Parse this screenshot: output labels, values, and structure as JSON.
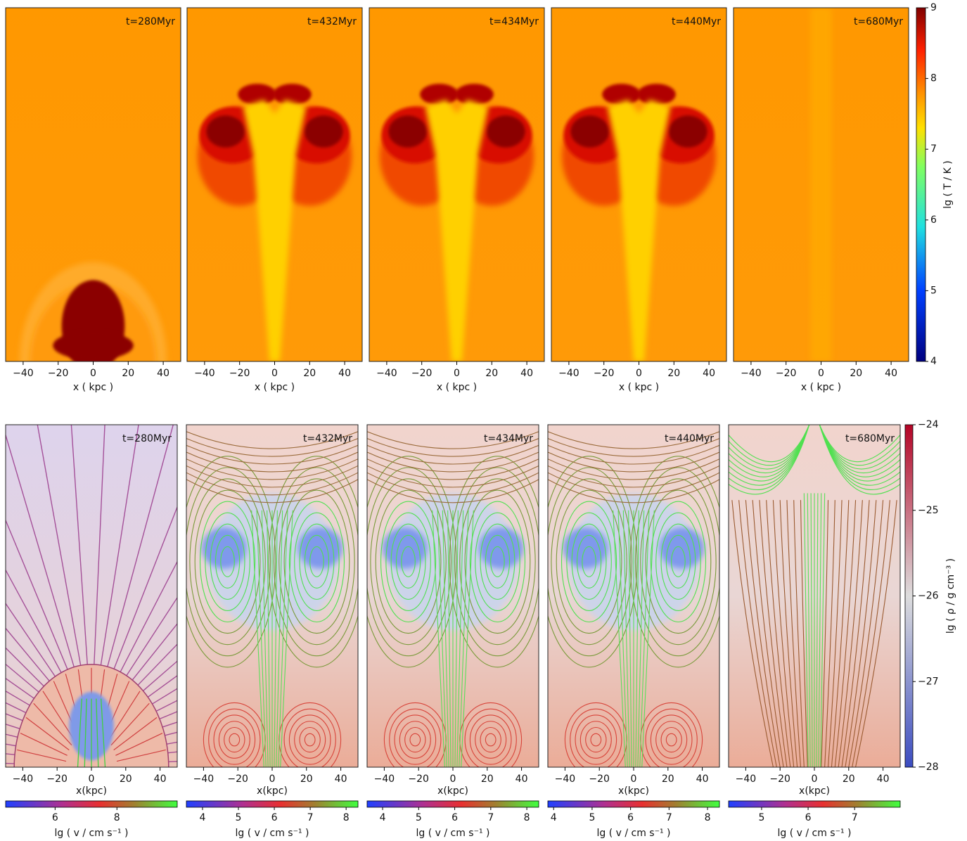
{
  "chart_data": [
    {
      "type": "heatmap",
      "title": "t=280Myr",
      "xlabel": "x ( kpc )",
      "xlim": [
        -50,
        50
      ],
      "xticks": [
        {
          "value": -40,
          "label": "−40"
        },
        {
          "value": -20,
          "label": "−20"
        },
        0,
        20,
        40
      ]
    },
    {
      "type": "heatmap",
      "title": "t=432Myr",
      "xlabel": "x ( kpc )",
      "xlim": [
        -50,
        50
      ],
      "xticks": [
        {
          "value": -40,
          "label": "−40"
        },
        {
          "value": -20,
          "label": "−20"
        },
        0,
        20,
        40
      ]
    },
    {
      "type": "heatmap",
      "title": "t=434Myr",
      "xlabel": "x ( kpc )",
      "xlim": [
        -50,
        50
      ],
      "xticks": [
        {
          "value": -40,
          "label": "−40"
        },
        {
          "value": -20,
          "label": "−20"
        },
        0,
        20,
        40
      ]
    },
    {
      "type": "heatmap",
      "title": "t=440Myr",
      "xlabel": "x ( kpc )",
      "xlim": [
        -50,
        50
      ],
      "xticks": [
        {
          "value": -40,
          "label": "−40"
        },
        {
          "value": -20,
          "label": "−20"
        },
        0,
        20,
        40
      ]
    },
    {
      "type": "heatmap",
      "title": "t=680Myr",
      "xlabel": "x ( kpc )",
      "xlim": [
        -50,
        50
      ],
      "xticks": [
        {
          "value": -40,
          "label": "−40"
        },
        {
          "value": -20,
          "label": "−20"
        },
        0,
        20,
        40
      ],
      "colorbar": {
        "label": "lg ( T / K )",
        "lim": [
          4,
          9
        ],
        "ticks": [
          4,
          5,
          6,
          7,
          8,
          9
        ]
      }
    },
    {
      "type": "streamplot",
      "title": "t=280Myr",
      "xlabel": "x(kpc)",
      "xlim": [
        -50,
        50
      ],
      "xticks": [
        {
          "value": -40,
          "label": "−40"
        },
        {
          "value": -20,
          "label": "−20"
        },
        0,
        20,
        40
      ],
      "velocity_colorbar": {
        "label": "lg ( v / cm  s⁻¹ )",
        "lim": [
          4.4,
          9.95
        ],
        "ticks": [
          6,
          8
        ]
      }
    },
    {
      "type": "streamplot",
      "title": "t=432Myr",
      "xlabel": "x(kpc)",
      "xlim": [
        -50,
        50
      ],
      "xticks": [
        {
          "value": -40,
          "label": "−40"
        },
        {
          "value": -20,
          "label": "−20"
        },
        0,
        20,
        40
      ],
      "velocity_colorbar": {
        "label": "lg ( v / cm  s⁻¹ )",
        "lim": [
          3.55,
          8.33
        ],
        "ticks": [
          4,
          5,
          6,
          7,
          8
        ]
      }
    },
    {
      "type": "streamplot",
      "title": "t=434Myr",
      "xlabel": "x(kpc)",
      "xlim": [
        -50,
        50
      ],
      "xticks": [
        {
          "value": -40,
          "label": "−40"
        },
        {
          "value": -20,
          "label": "−20"
        },
        0,
        20,
        40
      ],
      "velocity_colorbar": {
        "label": "lg ( v / cm  s⁻¹ )",
        "lim": [
          3.57,
          8.33
        ],
        "ticks": [
          4,
          5,
          6,
          7,
          8
        ]
      }
    },
    {
      "type": "streamplot",
      "title": "t=440Myr",
      "xlabel": "x(kpc)",
      "xlim": [
        -50,
        50
      ],
      "xticks": [
        {
          "value": -40,
          "label": "−40"
        },
        {
          "value": -20,
          "label": "−20"
        },
        0,
        20,
        40
      ],
      "velocity_colorbar": {
        "label": "lg ( v / cm  s⁻¹ )",
        "lim": [
          3.85,
          8.31
        ],
        "ticks": [
          4,
          5,
          6,
          7,
          8
        ]
      }
    },
    {
      "type": "streamplot",
      "title": "t=680Myr",
      "xlabel": "x(kpc)",
      "xlim": [
        -50,
        50
      ],
      "xticks": [
        {
          "value": -40,
          "label": "−40"
        },
        {
          "value": -20,
          "label": "−20"
        },
        0,
        20,
        40
      ],
      "velocity_colorbar": {
        "label": "lg ( v / cm  s⁻¹ )",
        "lim": [
          4.29,
          7.98
        ],
        "ticks": [
          5,
          6,
          7
        ]
      },
      "colorbar": {
        "label": "lg ( ρ / g cm⁻³ )",
        "lim": [
          -28,
          -24
        ],
        "ticks": [
          {
            "value": -28,
            "label": "−28"
          },
          {
            "value": -27,
            "label": "−27"
          },
          {
            "value": -26,
            "label": "−26"
          },
          {
            "value": -25,
            "label": "−25"
          },
          {
            "value": -24,
            "label": "−24"
          }
        ]
      }
    }
  ]
}
